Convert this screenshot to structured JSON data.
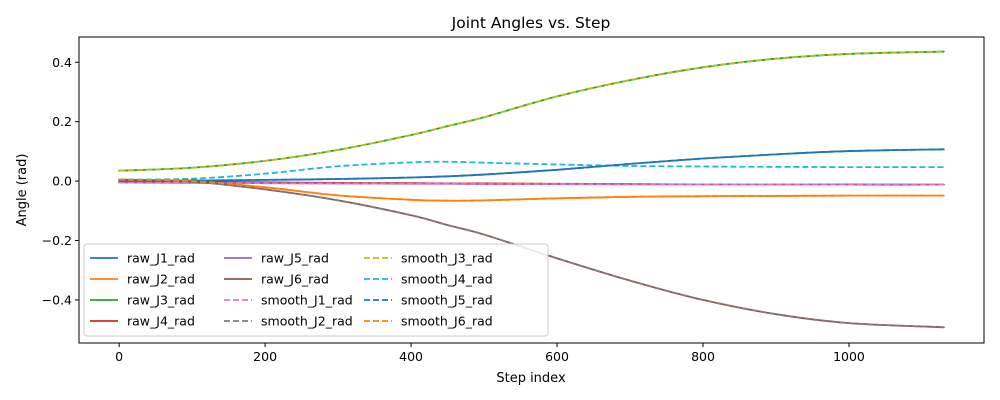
{
  "chart_data": {
    "type": "line",
    "title": "Joint Angles vs. Step",
    "xlabel": "Step index",
    "ylabel": "Angle (rad)",
    "xlim": [
      -55,
      1185
    ],
    "ylim": [
      -0.545,
      0.485
    ],
    "xticks": [
      0,
      200,
      400,
      600,
      800,
      1000
    ],
    "xtick_labels": [
      "0",
      "200",
      "400",
      "600",
      "800",
      "1000"
    ],
    "yticks": [
      -0.4,
      -0.2,
      0.0,
      0.2,
      0.4
    ],
    "ytick_labels": [
      "−0.4",
      "−0.2",
      "0.0",
      "0.2",
      "0.4"
    ],
    "grid": false,
    "legend": {
      "placement": "lower-left",
      "columns": 3
    },
    "x": [
      0,
      100,
      200,
      300,
      400,
      450,
      500,
      600,
      700,
      800,
      900,
      1000,
      1130
    ],
    "series": [
      {
        "name": "raw_J1_rad",
        "color": "#1f77b4",
        "dashed": false,
        "values": [
          0.0,
          0.002,
          0.004,
          0.007,
          0.012,
          0.016,
          0.022,
          0.038,
          0.058,
          0.076,
          0.09,
          0.101,
          0.107
        ]
      },
      {
        "name": "raw_J2_rad",
        "color": "#ff7f0e",
        "dashed": false,
        "values": [
          0.005,
          0.0,
          -0.021,
          -0.048,
          -0.063,
          -0.066,
          -0.065,
          -0.058,
          -0.053,
          -0.051,
          -0.05,
          -0.049,
          -0.049
        ]
      },
      {
        "name": "raw_J3_rad",
        "color": "#2ca02c",
        "dashed": false,
        "values": [
          0.035,
          0.045,
          0.068,
          0.105,
          0.155,
          0.185,
          0.215,
          0.285,
          0.34,
          0.383,
          0.412,
          0.428,
          0.436
        ]
      },
      {
        "name": "raw_J4_rad",
        "color": "#d62728",
        "dashed": false,
        "values": [
          0.0,
          -0.002,
          -0.004,
          -0.006,
          -0.007,
          -0.008,
          -0.008,
          -0.009,
          -0.01,
          -0.011,
          -0.011,
          -0.011,
          -0.012
        ]
      },
      {
        "name": "raw_J5_rad",
        "color": "#9467bd",
        "dashed": false,
        "values": [
          -0.005,
          -0.006,
          -0.007,
          -0.008,
          -0.009,
          -0.009,
          -0.01,
          -0.01,
          -0.011,
          -0.011,
          -0.011,
          -0.012,
          -0.012
        ]
      },
      {
        "name": "raw_J6_rad",
        "color": "#8c564b",
        "dashed": false,
        "values": [
          0.005,
          -0.002,
          -0.028,
          -0.065,
          -0.115,
          -0.148,
          -0.18,
          -0.26,
          -0.335,
          -0.4,
          -0.448,
          -0.478,
          -0.492
        ]
      },
      {
        "name": "smooth_J1_rad",
        "color": "#e377c2",
        "dashed": true,
        "values": [
          -0.005,
          -0.006,
          -0.007,
          -0.008,
          -0.009,
          -0.009,
          -0.01,
          -0.01,
          -0.011,
          -0.011,
          -0.011,
          -0.012,
          -0.012
        ]
      },
      {
        "name": "smooth_J2_rad",
        "color": "#7f7f7f",
        "dashed": true,
        "values": [
          0.005,
          -0.002,
          -0.028,
          -0.065,
          -0.115,
          -0.148,
          -0.18,
          -0.26,
          -0.335,
          -0.4,
          -0.448,
          -0.478,
          -0.492
        ]
      },
      {
        "name": "smooth_J3_rad",
        "color": "#bcbd22",
        "dashed": true,
        "values": [
          0.035,
          0.045,
          0.068,
          0.105,
          0.155,
          0.185,
          0.215,
          0.285,
          0.34,
          0.383,
          0.412,
          0.428,
          0.436
        ]
      },
      {
        "name": "smooth_J4_rad",
        "color": "#17becf",
        "dashed": true,
        "values": [
          0.005,
          0.008,
          0.025,
          0.05,
          0.063,
          0.065,
          0.062,
          0.056,
          0.051,
          0.049,
          0.048,
          0.047,
          0.047
        ]
      },
      {
        "name": "smooth_J5_rad",
        "color": "#1f77b4",
        "dashed": true,
        "values": [
          0.0,
          0.002,
          0.004,
          0.007,
          0.012,
          0.016,
          0.022,
          0.038,
          0.058,
          0.076,
          0.09,
          0.101,
          0.107
        ]
      },
      {
        "name": "smooth_J6_rad",
        "color": "#ff7f0e",
        "dashed": true,
        "values": [
          0.005,
          0.0,
          -0.021,
          -0.048,
          -0.063,
          -0.066,
          -0.065,
          -0.058,
          -0.053,
          -0.051,
          -0.05,
          -0.049,
          -0.049
        ]
      }
    ]
  }
}
